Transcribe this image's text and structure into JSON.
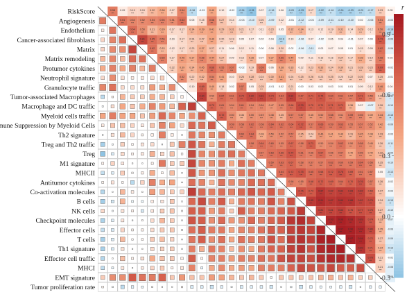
{
  "chart_data": {
    "type": "heatmap",
    "title": "",
    "variables": [
      "RiskScore",
      "Angiogenesis",
      "Endothelium",
      "Cancer-associated fibroblasts",
      "Matrix",
      "Matrix remodeling",
      "Protumor cytokines",
      "Neutrophil signature",
      "Granulocyte traffic",
      "Tumor-associated Macrophages",
      "Macrophage and DC traffic",
      "Myeloid cells traffic",
      "Immune Suppression by Myeloid Cells",
      "Th2 signature",
      "Treg and Th2 traffic",
      "Treg",
      "M1 signature",
      "MHCII",
      "Antitumor cytokines",
      "Co-activation molecules",
      "B cells",
      "NK cells",
      "Checkpoint molecules",
      "Effector cells",
      "T cells",
      "Th1 signature",
      "Effector cell traffic",
      "MHCI",
      "EMT signature",
      "Tumor proliferation rate"
    ],
    "upper_triangle_shows": "correlation coefficient and significance stars",
    "lower_triangle_shows": "colored squares sized by |r|",
    "colorbar": {
      "title": "r",
      "ticks": [
        0.9,
        0.6,
        0.3,
        0.0,
        -0.3
      ],
      "range": [
        -0.3,
        1.0
      ],
      "colors": {
        "low": "#8ec3e3",
        "mid": "#ffffff",
        "high": "#a4171f"
      }
    },
    "matrix": [
      [
        1,
        0.58,
        0.09,
        0.19,
        0.19,
        0.32,
        0.38,
        0.17,
        0.54,
        -0.18,
        -0.03,
        0.4,
        0.1,
        -0.02,
        -0.24,
        -0.31,
        0.07,
        -0.16,
        0.06,
        -0.2,
        -0.25,
        0.17,
        -0.22,
        -0.16,
        -0.24,
        -0.23,
        -0.2,
        -0.17,
        0.23,
        0.05
      ],
      [
        0.58,
        1,
        0.61,
        0.54,
        0.52,
        0.54,
        0.56,
        0.51,
        0.63,
        0.05,
        0.15,
        0.58,
        0.27,
        0.14,
        -0.03,
        -0.1,
        0.2,
        -0.09,
        0.12,
        -0.01,
        -0.12,
        -0.03,
        -0.09,
        -0.11,
        -0.1,
        -0.1,
        0.02,
        -0.06,
        0.51,
        -0.03
      ],
      [
        0.09,
        0.61,
        1,
        0.64,
        0.5,
        0.31,
        0.39,
        0.17,
        0.17,
        0.34,
        0.39,
        0.41,
        0.29,
        0.31,
        0.21,
        0.17,
        0.11,
        0.23,
        0.05,
        0.32,
        0.34,
        0.13,
        0.12,
        0.19,
        0.31,
        0.14,
        0.29,
        0.12,
        0.5,
        -0.18
      ],
      [
        0.19,
        0.54,
        0.64,
        1,
        0.81,
        0.65,
        0.56,
        0.1,
        0.17,
        0.24,
        0.27,
        0.4,
        0.2,
        0.19,
        0.05,
        0.07,
        0.02,
        0.04,
        -0.19,
        0.1,
        -0.06,
        0.07,
        -0.02,
        0.06,
        0.04,
        -0.01,
        0.07,
        0.0,
        0.73,
        -0.09
      ],
      [
        0.19,
        0.52,
        0.5,
        0.81,
        1,
        0.62,
        0.33,
        0.12,
        0.17,
        0.23,
        0.37,
        0.27,
        0.11,
        0.06,
        0.12,
        0.11,
        0.0,
        0.08,
        0.2,
        0.02,
        -0.06,
        -0.11,
        0.03,
        0.07,
        0.05,
        0.01,
        0.15,
        0.09,
        0.62,
        -0.06
      ],
      [
        0.32,
        0.54,
        0.31,
        0.65,
        0.62,
        1,
        0.58,
        0.17,
        0.45,
        0.37,
        0.55,
        0.44,
        0.27,
        0.09,
        0.16,
        0.35,
        0.07,
        0.37,
        0.56,
        0.44,
        0.09,
        0.11,
        0.16,
        0.16,
        0.24,
        0.17,
        0.38,
        0.19,
        0.58,
        0.03
      ],
      [
        0.38,
        0.56,
        0.39,
        0.56,
        0.33,
        0.58,
        1,
        0.22,
        0.39,
        0.34,
        0.45,
        0.66,
        0.55,
        0.57,
        -0.02,
        0.19,
        0.59,
        0.06,
        0.38,
        0.33,
        0.12,
        0.23,
        0.33,
        0.24,
        0.3,
        0.21,
        0.28,
        0.23,
        0.69,
        -0.02
      ],
      [
        0.17,
        0.51,
        0.17,
        0.1,
        0.12,
        0.17,
        0.22,
        1,
        0.52,
        0.22,
        0.32,
        0.54,
        0.41,
        0.1,
        0.26,
        0.28,
        0.24,
        0.3,
        0.41,
        0.24,
        0.25,
        0.26,
        0.23,
        0.25,
        0.2,
        0.22,
        0.25,
        0.07,
        0.25,
        -0.01
      ],
      [
        0.54,
        0.63,
        0.17,
        0.17,
        0.17,
        0.45,
        0.39,
        0.52,
        1,
        0.1,
        0.69,
        0.4,
        0.18,
        0.02,
        0.57,
        0.05,
        0.25,
        -0.01,
        0.02,
        0.21,
        0.0,
        0.03,
        0.02,
        0.03,
        0.01,
        0.01,
        0.09,
        0.12,
        0.46,
        0.04
      ],
      [
        -0.18,
        0.05,
        0.34,
        0.24,
        0.23,
        0.37,
        0.34,
        0.22,
        0.1,
        1,
        0.84,
        0.5,
        0.67,
        0.61,
        0.74,
        0.8,
        0.81,
        0.74,
        0.64,
        0.84,
        0.67,
        0.71,
        0.75,
        0.64,
        0.61,
        0.57,
        0.71,
        0.55,
        0.28,
        -0.11
      ],
      [
        -0.03,
        0.15,
        0.39,
        0.27,
        0.37,
        0.55,
        0.45,
        0.32,
        0.69,
        0.84,
        1,
        0.7,
        0.61,
        0.54,
        0.61,
        0.54,
        0.54,
        0.47,
        0.55,
        0.66,
        0.79,
        0.7,
        0.71,
        0.71,
        0.71,
        0.36,
        0.07,
        -0.07,
        0.26,
        -0.1
      ],
      [
        0.4,
        0.58,
        0.41,
        0.4,
        0.27,
        0.44,
        0.66,
        0.54,
        0.4,
        0.5,
        0.7,
        1,
        0.72,
        0.5,
        0.36,
        0.5,
        0.49,
        0.48,
        0.35,
        0.57,
        0.57,
        0.45,
        0.5,
        0.58,
        0.51,
        0.59,
        0.55,
        0.39,
        0.44,
        -0.15
      ],
      [
        0.1,
        0.27,
        0.29,
        0.2,
        0.11,
        0.27,
        0.55,
        0.41,
        0.18,
        0.67,
        0.61,
        0.72,
        1,
        0.59,
        0.58,
        0.62,
        0.58,
        0.64,
        0.62,
        0.64,
        0.72,
        0.57,
        0.66,
        0.59,
        0.63,
        0.55,
        0.57,
        0.52,
        0.42,
        -0.09
      ],
      [
        -0.02,
        0.14,
        0.31,
        0.19,
        0.06,
        0.09,
        0.57,
        0.1,
        0.02,
        0.61,
        0.54,
        0.5,
        0.59,
        1,
        0.6,
        0.64,
        0.38,
        0.5,
        0.52,
        0.57,
        0.35,
        0.24,
        0.46,
        0.41,
        0.4,
        0.31,
        0.45,
        0.38,
        0.33,
        -0.03
      ],
      [
        -0.24,
        -0.03,
        0.21,
        0.05,
        0.12,
        0.16,
        -0.02,
        0.26,
        0.57,
        0.74,
        0.61,
        0.36,
        0.58,
        0.6,
        1,
        0.58,
        0.64,
        0.6,
        0.55,
        0.67,
        0.58,
        0.71,
        0.5,
        0.54,
        0.62,
        0.5,
        0.58,
        0.45,
        0.26,
        -0.11
      ],
      [
        -0.31,
        -0.1,
        0.17,
        0.07,
        0.11,
        0.35,
        0.19,
        0.28,
        0.05,
        0.8,
        0.54,
        0.5,
        0.62,
        0.64,
        0.58,
        1,
        0.57,
        0.63,
        0.66,
        0.74,
        0.61,
        0.56,
        0.67,
        0.55,
        0.57,
        0.4,
        0.55,
        0.4,
        0.32,
        -0.09
      ],
      [
        0.07,
        0.2,
        0.11,
        0.02,
        0.0,
        0.07,
        0.59,
        0.24,
        0.25,
        0.81,
        0.54,
        0.49,
        0.58,
        0.38,
        0.64,
        0.57,
        1,
        0.59,
        0.63,
        0.67,
        0.58,
        0.57,
        0.57,
        0.62,
        0.6,
        0.59,
        0.64,
        0.56,
        0.25,
        -0.1
      ],
      [
        -0.16,
        -0.09,
        0.23,
        0.04,
        0.08,
        0.37,
        0.06,
        0.3,
        -0.01,
        0.74,
        0.47,
        0.48,
        0.64,
        0.5,
        0.6,
        0.63,
        0.59,
        1,
        0.64,
        0.72,
        0.75,
        0.65,
        0.68,
        0.72,
        0.76,
        0.69,
        0.61,
        0.57,
        0.05,
        -0.13
      ],
      [
        0.06,
        0.12,
        0.05,
        -0.19,
        0.2,
        0.56,
        0.38,
        0.41,
        0.02,
        0.64,
        0.55,
        0.35,
        0.62,
        0.52,
        0.55,
        0.66,
        0.63,
        0.64,
        1,
        0.56,
        0.55,
        0.68,
        0.72,
        0.69,
        0.64,
        0.7,
        0.76,
        0.57,
        0.26,
        -0.02
      ],
      [
        -0.2,
        -0.01,
        0.32,
        0.1,
        0.02,
        0.44,
        0.33,
        0.24,
        0.21,
        0.84,
        0.66,
        0.57,
        0.64,
        0.57,
        0.67,
        0.74,
        0.67,
        0.72,
        0.56,
        1,
        0.76,
        0.73,
        0.87,
        0.82,
        0.84,
        0.83,
        0.82,
        0.69,
        0.27,
        -0.04
      ],
      [
        -0.25,
        -0.12,
        0.34,
        -0.06,
        -0.06,
        0.09,
        0.12,
        0.25,
        0.0,
        0.67,
        0.79,
        0.57,
        0.72,
        0.35,
        0.58,
        0.61,
        0.58,
        0.75,
        0.55,
        0.76,
        1,
        0.85,
        0.91,
        0.87,
        0.89,
        0.88,
        0.82,
        0.79,
        0.24,
        -0.15
      ],
      [
        0.17,
        -0.03,
        0.13,
        0.07,
        -0.11,
        0.11,
        0.23,
        0.26,
        0.03,
        0.71,
        0.7,
        0.45,
        0.57,
        0.24,
        0.71,
        0.56,
        0.57,
        0.65,
        0.68,
        0.73,
        0.85,
        1,
        0.81,
        0.81,
        0.83,
        0.76,
        0.77,
        0.75,
        0.27,
        -0.1
      ],
      [
        -0.22,
        -0.09,
        0.12,
        -0.02,
        0.03,
        0.16,
        0.33,
        0.23,
        0.02,
        0.75,
        0.71,
        0.5,
        0.66,
        0.46,
        0.5,
        0.67,
        0.57,
        0.68,
        0.72,
        0.87,
        0.91,
        0.81,
        1,
        0.93,
        0.96,
        0.93,
        0.89,
        0.74,
        0.33,
        -0.07
      ],
      [
        -0.16,
        -0.11,
        0.19,
        0.06,
        0.07,
        0.16,
        0.24,
        0.25,
        0.03,
        0.64,
        0.71,
        0.58,
        0.59,
        0.41,
        0.54,
        0.55,
        0.62,
        0.72,
        0.69,
        0.82,
        0.87,
        0.81,
        0.93,
        1,
        0.97,
        0.96,
        0.93,
        0.8,
        0.35,
        -0.06
      ],
      [
        -0.24,
        -0.1,
        0.31,
        0.04,
        0.05,
        0.24,
        0.3,
        0.2,
        0.01,
        0.61,
        0.71,
        0.51,
        0.63,
        0.4,
        0.62,
        0.57,
        0.6,
        0.76,
        0.64,
        0.84,
        0.89,
        0.83,
        0.96,
        0.97,
        1,
        0.97,
        0.94,
        0.72,
        0.27,
        -0.09
      ],
      [
        -0.23,
        -0.1,
        0.14,
        -0.01,
        0.01,
        0.17,
        0.21,
        0.22,
        0.01,
        0.57,
        0.36,
        0.59,
        0.55,
        0.31,
        0.5,
        0.4,
        0.59,
        0.69,
        0.7,
        0.83,
        0.88,
        0.76,
        0.93,
        0.96,
        0.97,
        1,
        0.89,
        0.71,
        0.34,
        -0.13
      ],
      [
        -0.2,
        0.02,
        0.29,
        0.07,
        0.15,
        0.38,
        0.28,
        0.25,
        0.09,
        0.71,
        0.07,
        0.55,
        0.57,
        0.45,
        0.58,
        0.55,
        0.64,
        0.61,
        0.76,
        0.82,
        0.82,
        0.77,
        0.89,
        0.93,
        0.94,
        0.89,
        1,
        0.78,
        0.21,
        -0.02
      ],
      [
        -0.17,
        -0.06,
        0.12,
        0.0,
        0.09,
        0.19,
        0.23,
        0.07,
        0.12,
        0.55,
        -0.07,
        0.39,
        0.52,
        0.38,
        0.45,
        0.4,
        0.56,
        0.57,
        0.57,
        0.69,
        0.79,
        0.75,
        0.74,
        0.8,
        0.72,
        0.71,
        0.78,
        1,
        0.21,
        -0.08
      ],
      [
        0.23,
        0.51,
        0.5,
        0.73,
        0.62,
        0.58,
        0.69,
        0.25,
        0.46,
        0.28,
        0.26,
        0.44,
        0.42,
        0.33,
        0.26,
        0.32,
        0.25,
        0.05,
        0.26,
        0.27,
        0.24,
        0.27,
        0.33,
        0.35,
        0.27,
        0.34,
        0.21,
        0.21,
        1,
        -0.08
      ],
      [
        0.05,
        -0.03,
        -0.18,
        -0.09,
        -0.06,
        0.03,
        -0.02,
        -0.01,
        0.04,
        -0.11,
        -0.1,
        -0.15,
        -0.09,
        -0.03,
        -0.11,
        -0.09,
        -0.1,
        -0.13,
        -0.02,
        -0.04,
        -0.15,
        -0.1,
        -0.07,
        -0.06,
        -0.09,
        -0.13,
        -0.02,
        -0.08,
        -0.08,
        1
      ]
    ]
  }
}
